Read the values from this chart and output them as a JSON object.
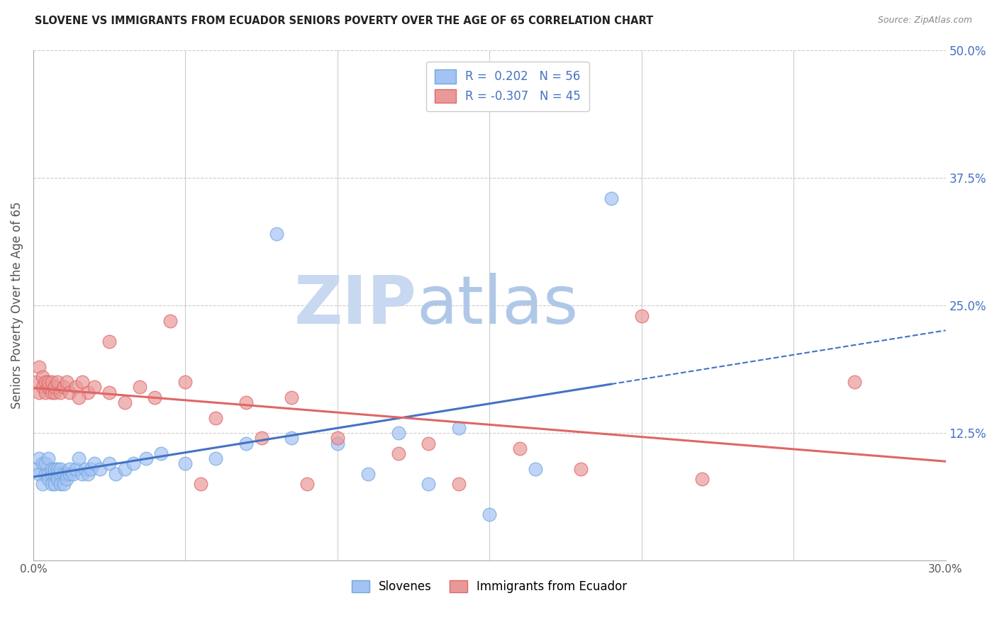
{
  "title": "SLOVENE VS IMMIGRANTS FROM ECUADOR SENIORS POVERTY OVER THE AGE OF 65 CORRELATION CHART",
  "source": "Source: ZipAtlas.com",
  "ylabel": "Seniors Poverty Over the Age of 65",
  "xlim": [
    0.0,
    0.3
  ],
  "ylim": [
    0.0,
    0.5
  ],
  "legend_slovene_R": "0.202",
  "legend_slovene_N": "56",
  "legend_ecuador_R": "-0.307",
  "legend_ecuador_N": "45",
  "legend_label_slovene": "Slovenes",
  "legend_label_ecuador": "Immigrants from Ecuador",
  "blue_color": "#a4c2f4",
  "pink_color": "#ea9999",
  "blue_edge": "#6fa8dc",
  "pink_edge": "#e06666",
  "trend_blue": "#4472c4",
  "trend_pink": "#e06666",
  "legend_text_color": "#4472c4",
  "slovene_x": [
    0.001,
    0.002,
    0.002,
    0.003,
    0.003,
    0.004,
    0.004,
    0.005,
    0.005,
    0.005,
    0.006,
    0.006,
    0.006,
    0.007,
    0.007,
    0.007,
    0.008,
    0.008,
    0.008,
    0.009,
    0.009,
    0.009,
    0.01,
    0.01,
    0.011,
    0.011,
    0.012,
    0.012,
    0.013,
    0.014,
    0.015,
    0.016,
    0.017,
    0.018,
    0.019,
    0.02,
    0.022,
    0.025,
    0.027,
    0.03,
    0.033,
    0.037,
    0.042,
    0.05,
    0.06,
    0.07,
    0.085,
    0.1,
    0.12,
    0.14,
    0.165,
    0.11,
    0.13,
    0.15,
    0.08,
    0.19
  ],
  "slovene_y": [
    0.09,
    0.1,
    0.085,
    0.095,
    0.075,
    0.085,
    0.095,
    0.1,
    0.085,
    0.08,
    0.085,
    0.075,
    0.09,
    0.085,
    0.075,
    0.09,
    0.085,
    0.08,
    0.09,
    0.085,
    0.075,
    0.09,
    0.085,
    0.075,
    0.085,
    0.08,
    0.085,
    0.09,
    0.085,
    0.09,
    0.1,
    0.085,
    0.09,
    0.085,
    0.09,
    0.095,
    0.09,
    0.095,
    0.085,
    0.09,
    0.095,
    0.1,
    0.105,
    0.095,
    0.1,
    0.115,
    0.12,
    0.115,
    0.125,
    0.13,
    0.09,
    0.085,
    0.075,
    0.045,
    0.32,
    0.355
  ],
  "ecuador_x": [
    0.001,
    0.002,
    0.002,
    0.003,
    0.003,
    0.004,
    0.004,
    0.005,
    0.005,
    0.006,
    0.006,
    0.007,
    0.007,
    0.008,
    0.009,
    0.01,
    0.011,
    0.012,
    0.014,
    0.016,
    0.018,
    0.02,
    0.025,
    0.03,
    0.035,
    0.04,
    0.05,
    0.06,
    0.07,
    0.085,
    0.1,
    0.12,
    0.14,
    0.16,
    0.18,
    0.2,
    0.22,
    0.045,
    0.075,
    0.13,
    0.055,
    0.025,
    0.015,
    0.27,
    0.09
  ],
  "ecuador_y": [
    0.175,
    0.165,
    0.19,
    0.18,
    0.17,
    0.175,
    0.165,
    0.17,
    0.175,
    0.165,
    0.175,
    0.165,
    0.17,
    0.175,
    0.165,
    0.17,
    0.175,
    0.165,
    0.17,
    0.175,
    0.165,
    0.17,
    0.165,
    0.155,
    0.17,
    0.16,
    0.175,
    0.14,
    0.155,
    0.16,
    0.12,
    0.105,
    0.075,
    0.11,
    0.09,
    0.24,
    0.08,
    0.235,
    0.12,
    0.115,
    0.075,
    0.215,
    0.16,
    0.175,
    0.075
  ],
  "background_color": "#ffffff",
  "grid_color": "#cccccc",
  "title_color": "#222222",
  "right_axis_color": "#4472c4",
  "watermark_zip_color": "#c8d8f0",
  "watermark_atlas_color": "#a0b8d8"
}
